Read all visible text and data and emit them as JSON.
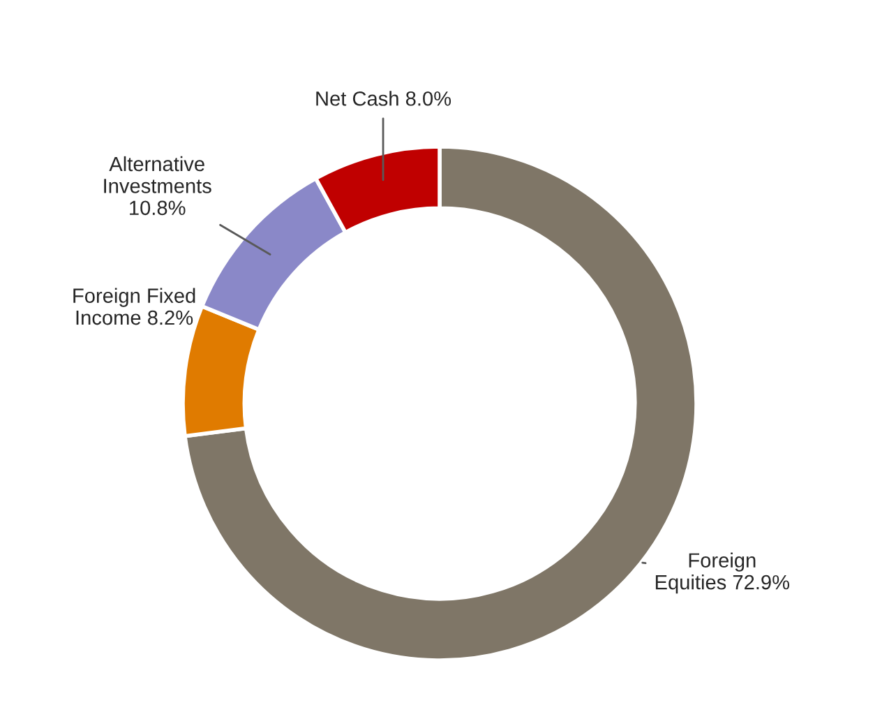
{
  "chart_data": {
    "type": "donut",
    "categories": [
      "Foreign Equities",
      "Foreign Fixed Income",
      "Alternative Investments",
      "Net Cash"
    ],
    "values": [
      72.9,
      8.2,
      10.8,
      8.0
    ],
    "colors": [
      "#7f7667",
      "#e07b00",
      "#8a88c8",
      "#c00000"
    ],
    "value_labels": [
      "72.9%",
      "8.2%",
      "10.8%",
      "8.0%"
    ]
  }
}
